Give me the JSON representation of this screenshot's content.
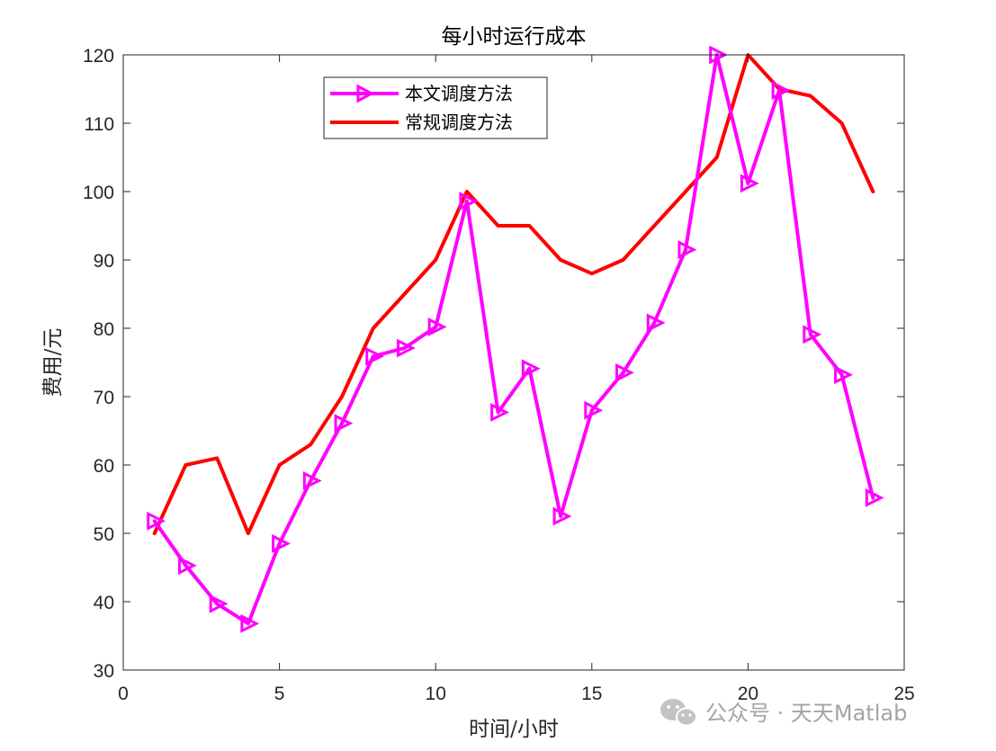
{
  "chart_data": {
    "type": "line",
    "title": "每小时运行成本",
    "xlabel": "时间/小时",
    "ylabel": "费用/元",
    "xlim": [
      0,
      25
    ],
    "ylim": [
      30,
      120
    ],
    "xticks": [
      0,
      5,
      10,
      15,
      20,
      25
    ],
    "yticks": [
      30,
      40,
      50,
      60,
      70,
      80,
      90,
      100,
      110,
      120
    ],
    "x": [
      1,
      2,
      3,
      4,
      5,
      6,
      7,
      8,
      9,
      10,
      11,
      12,
      13,
      14,
      15,
      16,
      17,
      18,
      19,
      20,
      21,
      22,
      23,
      24
    ],
    "series": [
      {
        "name": "本文调度方法",
        "color": "#ff00ff",
        "marker": "triangle-right",
        "values": [
          51.8,
          45.3,
          39.7,
          36.8,
          48.5,
          57.7,
          66.1,
          75.9,
          77.1,
          80.2,
          98.6,
          67.7,
          74.1,
          52.5,
          68.0,
          73.5,
          80.8,
          91.5,
          120,
          101.2,
          114.8,
          79.1,
          73.2,
          55.2
        ]
      },
      {
        "name": "常规调度方法",
        "color": "#ff0000",
        "marker": "none",
        "values": [
          50,
          60,
          61,
          50,
          60,
          63,
          70,
          80,
          85,
          90,
          100,
          95,
          95,
          90,
          88,
          90,
          95,
          100,
          105,
          120,
          115,
          114,
          110,
          100
        ]
      }
    ],
    "legend": {
      "position": "top-left-inside",
      "entries": [
        "本文调度方法",
        "常规调度方法"
      ]
    },
    "grid": false
  },
  "watermark": {
    "icon": "wechat-icon",
    "text": "公众号 · 天天Matlab"
  }
}
